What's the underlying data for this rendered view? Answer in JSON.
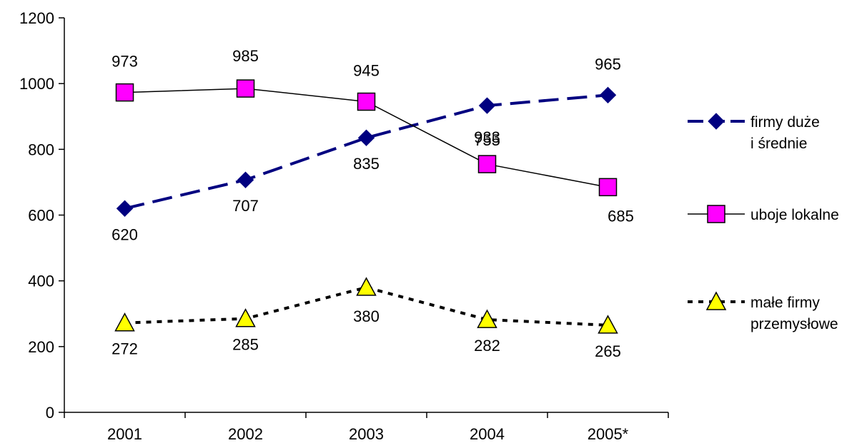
{
  "chart_data": {
    "type": "line",
    "categories": [
      "2001",
      "2002",
      "2003",
      "2004",
      "2005*"
    ],
    "ylim": [
      0,
      1200
    ],
    "yticks": [
      0,
      200,
      400,
      600,
      800,
      1000,
      1200
    ],
    "grid": false,
    "legend_position": "right",
    "series": [
      {
        "name_lines": [
          "firmy duże",
          "i średnie"
        ],
        "values": [
          620,
          707,
          835,
          933,
          965
        ],
        "color": "#000080",
        "marker": "diamond",
        "line_style": "long-dash"
      },
      {
        "name_lines": [
          "uboje lokalne"
        ],
        "values": [
          973,
          985,
          945,
          755,
          685
        ],
        "color": "#000000",
        "marker_fill": "#ff00ff",
        "marker": "square",
        "line_style": "solid"
      },
      {
        "name_lines": [
          "małe firmy",
          "przemysłowe"
        ],
        "values": [
          272,
          285,
          380,
          282,
          265
        ],
        "color": "#000000",
        "marker_fill": "#ffff00",
        "marker": "triangle",
        "line_style": "dotted"
      }
    ]
  }
}
